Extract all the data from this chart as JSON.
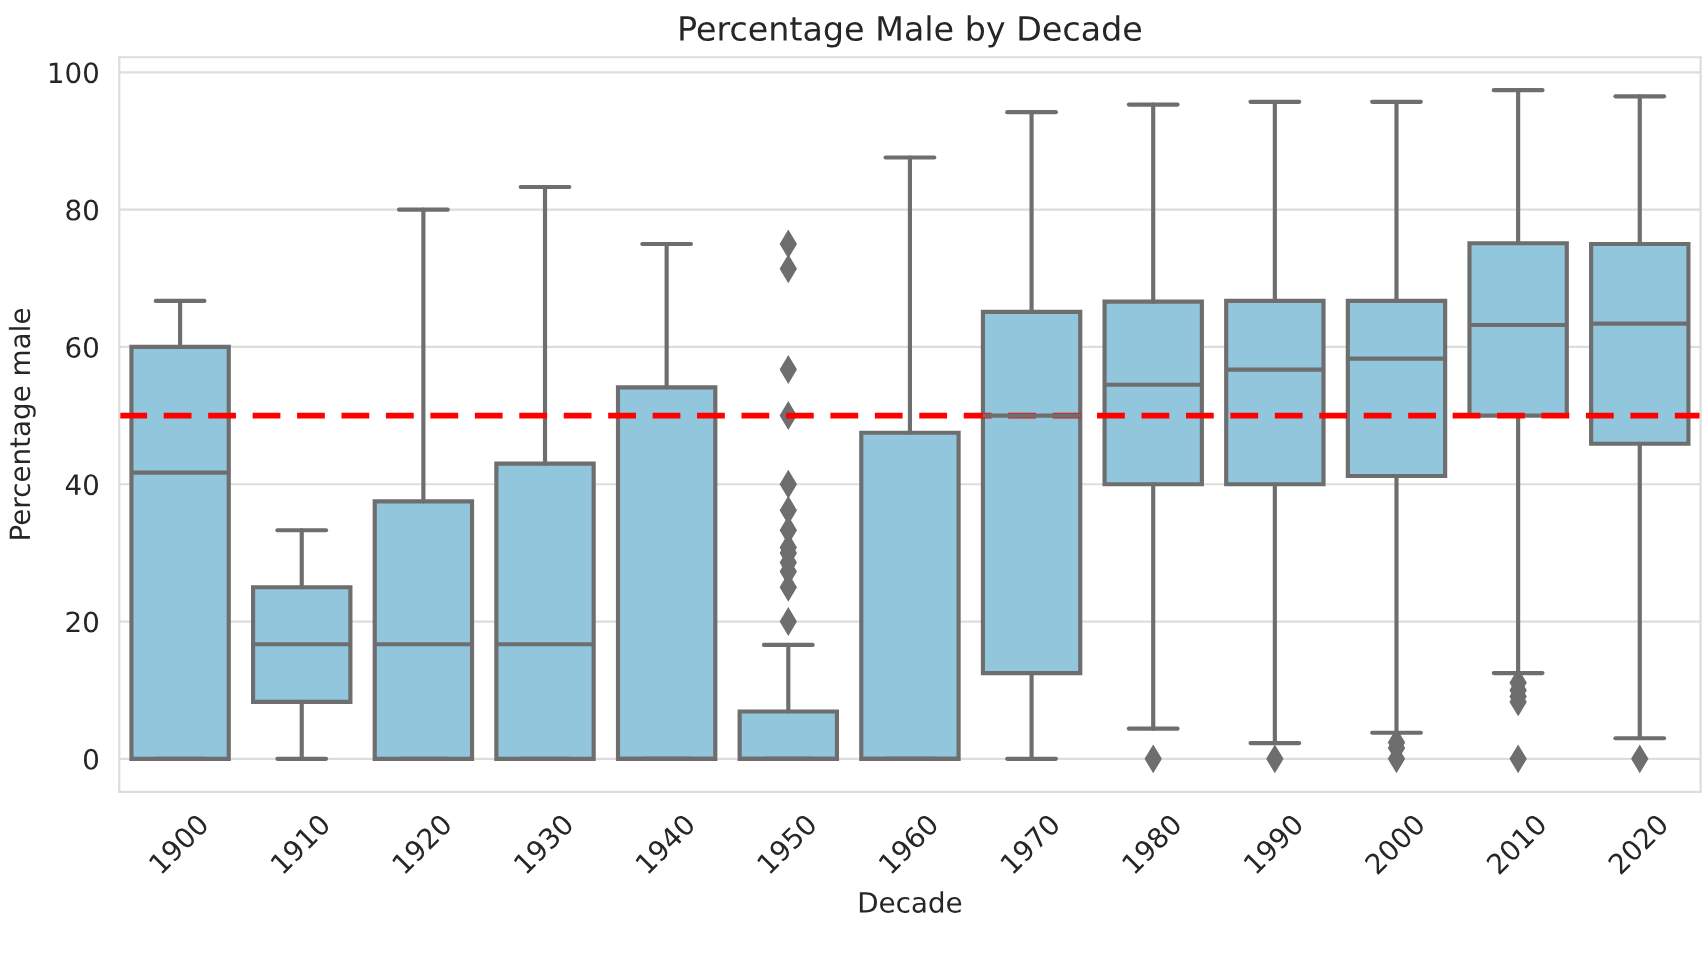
{
  "chart_data": {
    "type": "box",
    "title": "Percentage Male by Decade",
    "xlabel": "Decade",
    "ylabel": "Percentage male",
    "categories": [
      "1900",
      "1910",
      "1920",
      "1930",
      "1940",
      "1950",
      "1960",
      "1970",
      "1980",
      "1990",
      "2000",
      "2010",
      "2020"
    ],
    "color": "#92c6dd",
    "boxes": [
      {
        "low": 0,
        "q1": 0,
        "median": 41.7,
        "q3": 60,
        "high": 66.7
      },
      {
        "low": 0,
        "q1": 8.3,
        "median": 16.7,
        "q3": 25,
        "high": 33.3
      },
      {
        "low": 0,
        "q1": 0,
        "median": 16.7,
        "q3": 37.5,
        "high": 80
      },
      {
        "low": 0,
        "q1": 0,
        "median": 16.7,
        "q3": 43,
        "high": 83.3
      },
      {
        "low": 0,
        "q1": 0,
        "median": 0,
        "q3": 54.1,
        "high": 75
      },
      {
        "low": 0,
        "q1": 0,
        "median": 0,
        "q3": 6.9,
        "high": 16.6,
        "outliers": [
          75,
          71.4,
          56.7,
          50,
          40,
          36.2,
          33.3,
          30.8,
          30,
          28.6,
          27.3,
          25,
          20
        ]
      },
      {
        "low": 0,
        "q1": 0,
        "median": 0,
        "q3": 47.5,
        "high": 87.6
      },
      {
        "low": 0,
        "q1": 12.5,
        "median": 50,
        "q3": 65.1,
        "high": 94.2
      },
      {
        "low": 4.4,
        "q1": 40,
        "median": 54.5,
        "q3": 66.6,
        "high": 95.3,
        "outliers": [
          0
        ]
      },
      {
        "low": 2.3,
        "q1": 40,
        "median": 56.7,
        "q3": 66.7,
        "high": 95.7,
        "outliers": [
          0
        ]
      },
      {
        "low": 3.8,
        "q1": 41.2,
        "median": 58.3,
        "q3": 66.7,
        "high": 95.7,
        "outliers": [
          0,
          1.6,
          2.4
        ]
      },
      {
        "low": 12.5,
        "q1": 50,
        "median": 63.2,
        "q3": 75.1,
        "high": 97.4,
        "outliers": [
          0,
          11.1,
          10,
          9.1,
          8.3
        ]
      },
      {
        "low": 3.0,
        "q1": 45.9,
        "median": 63.4,
        "q3": 75,
        "high": 96.5,
        "outliers": [
          0
        ]
      }
    ],
    "ylim": [
      -4.8,
      102.2
    ],
    "yticks": [
      0,
      20,
      40,
      60,
      80,
      100
    ],
    "grid": "y",
    "ref_lines": [
      {
        "axis": "y",
        "value": 50,
        "color": "#ff0000",
        "line_style": "dashed"
      }
    ]
  }
}
